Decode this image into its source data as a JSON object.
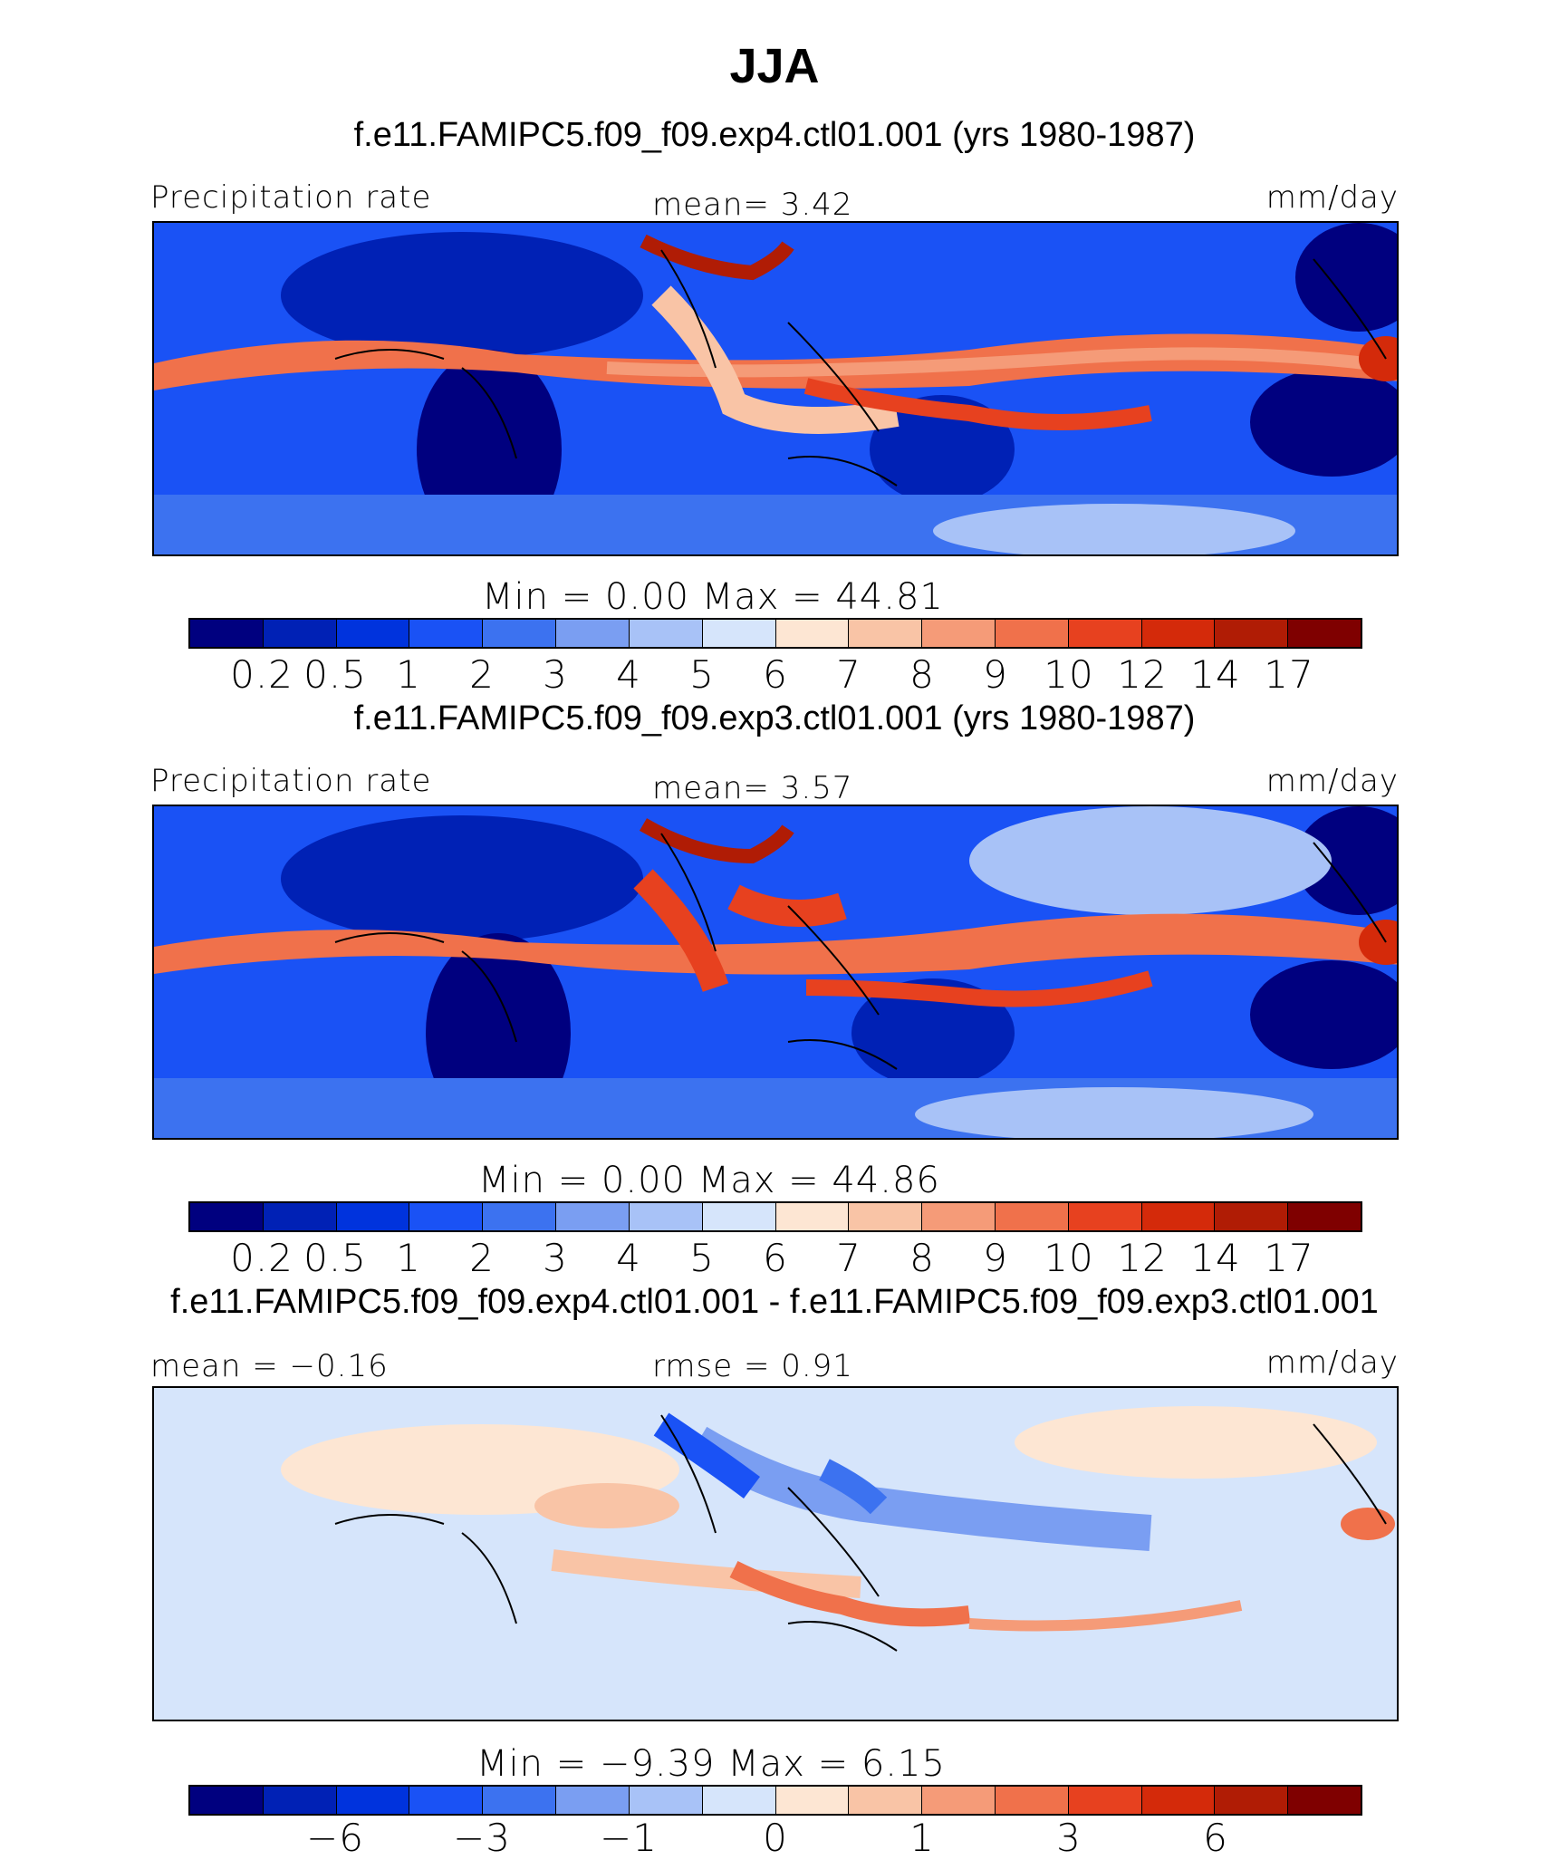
{
  "title": "JJA",
  "colors": {
    "full_field": [
      "#00007f",
      "#0021b5",
      "#0033dd",
      "#1a52f5",
      "#3c72f0",
      "#7a9ef2",
      "#a8c2f7",
      "#d6e5fb",
      "#fde6d3",
      "#f9c4a6",
      "#f59b78",
      "#f0714b",
      "#e7411f",
      "#d42a0a",
      "#b01c05",
      "#7f0000"
    ],
    "difference": [
      "#00007f",
      "#0021b5",
      "#0033dd",
      "#1a52f5",
      "#3c72f0",
      "#7a9ef2",
      "#a8c2f7",
      "#d6e5fb",
      "#fde6d3",
      "#f9c4a6",
      "#f59b78",
      "#f0714b",
      "#e7411f",
      "#d42a0a",
      "#b01c05",
      "#7f0000"
    ]
  },
  "panels": [
    {
      "case": "f.e11.FAMIPC5.f09_f09.exp4.ctl01.001 (yrs 1980-1987)",
      "left_label": "Precipitation  rate",
      "center_label": "mean=    3.42",
      "right_label": "mm/day",
      "minmax": "Min  =    0.00  Max  =   44.81",
      "colorbar_type": "full_field",
      "ticks": [
        "0.2",
        "0.5",
        "1",
        "2",
        "3",
        "4",
        "5",
        "6",
        "7",
        "8",
        "9",
        "10",
        "12",
        "14",
        "17"
      ],
      "map_bg": "#1a52f5"
    },
    {
      "case": "f.e11.FAMIPC5.f09_f09.exp3.ctl01.001 (yrs 1980-1987)",
      "left_label": "Precipitation  rate",
      "center_label": "mean=    3.57",
      "right_label": "mm/day",
      "minmax": "Min  =    0.00  Max  =   44.86",
      "colorbar_type": "full_field",
      "ticks": [
        "0.2",
        "0.5",
        "1",
        "2",
        "3",
        "4",
        "5",
        "6",
        "7",
        "8",
        "9",
        "10",
        "12",
        "14",
        "17"
      ],
      "map_bg": "#1a52f5"
    },
    {
      "case": "f.e11.FAMIPC5.f09_f09.exp4.ctl01.001 - f.e11.FAMIPC5.f09_f09.exp3.ctl01.001",
      "left_label": "mean  =   −0.16",
      "center_label": "rmse  =    0.91",
      "right_label": "mm/day",
      "minmax": "Min  =   −9.39  Max  =    6.15",
      "colorbar_type": "difference",
      "ticks": [
        "−6",
        "−3",
        "−1",
        "0",
        "1",
        "3",
        "6"
      ],
      "map_bg": "#d6e5fb"
    }
  ]
}
